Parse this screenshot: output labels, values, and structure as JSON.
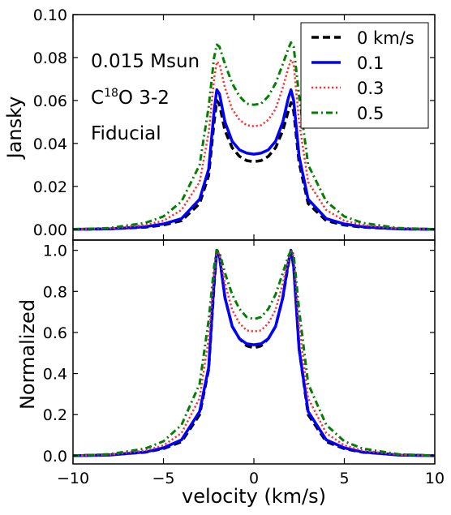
{
  "chart_data": [
    {
      "type": "line",
      "panel": "top",
      "xlabel": "",
      "ylabel": "Jansky",
      "xlim": [
        -10,
        10
      ],
      "ylim": [
        -0.005,
        0.1
      ],
      "xticks": [
        -10,
        -5,
        0,
        5,
        10
      ],
      "yticks": [
        {
          "value": 0.0,
          "label": "0.00"
        },
        {
          "value": 0.02,
          "label": "0.02"
        },
        {
          "value": 0.04,
          "label": "0.04"
        },
        {
          "value": 0.06,
          "label": "0.06"
        },
        {
          "value": 0.08,
          "label": "0.08"
        },
        {
          "value": 0.1,
          "label": "0.10"
        }
      ],
      "grid": false,
      "legend_position": "top-right",
      "annotations": {
        "mass": "0.015 Msun",
        "line_prefix": "C",
        "line_sup": "18",
        "line_suffix": "O 3-2",
        "model": "Fiducial"
      },
      "series": [
        {
          "name": "0 km/s",
          "color": "#000000",
          "dash": "dashed",
          "width": 3.5,
          "x": [
            -10,
            -8,
            -6,
            -5,
            -4,
            -3,
            -2.5,
            -2.2,
            -2.05,
            -1.9,
            -1.6,
            -1.2,
            -0.8,
            -0.4,
            0,
            0.4,
            0.8,
            1.2,
            1.6,
            1.9,
            2.05,
            2.2,
            2.5,
            3,
            4,
            5,
            6,
            8,
            10
          ],
          "y": [
            0.0,
            0.0002,
            0.001,
            0.002,
            0.004,
            0.012,
            0.025,
            0.05,
            0.06,
            0.058,
            0.046,
            0.038,
            0.034,
            0.032,
            0.0315,
            0.032,
            0.034,
            0.038,
            0.046,
            0.055,
            0.059,
            0.055,
            0.031,
            0.012,
            0.004,
            0.002,
            0.001,
            0.0002,
            0.0
          ]
        },
        {
          "name": "0.1",
          "color": "#0000ff",
          "dash": "solid",
          "width": 3.5,
          "x": [
            -10,
            -8,
            -6,
            -5,
            -4,
            -3,
            -2.5,
            -2.2,
            -2.05,
            -1.9,
            -1.6,
            -1.2,
            -0.8,
            -0.4,
            0,
            0.4,
            0.8,
            1.2,
            1.6,
            1.9,
            2.05,
            2.2,
            2.5,
            3,
            4,
            5,
            6,
            8,
            10
          ],
          "y": [
            0.0,
            0.0002,
            0.0012,
            0.0025,
            0.005,
            0.014,
            0.028,
            0.055,
            0.065,
            0.063,
            0.05,
            0.041,
            0.037,
            0.0355,
            0.035,
            0.0355,
            0.037,
            0.041,
            0.05,
            0.061,
            0.065,
            0.06,
            0.034,
            0.014,
            0.005,
            0.0025,
            0.0012,
            0.0002,
            0.0
          ]
        },
        {
          "name": "0.3",
          "color": "#ff3030",
          "dash": "dotted",
          "width": 2.5,
          "x": [
            -10,
            -8,
            -6,
            -5,
            -4,
            -3,
            -2.5,
            -2.2,
            -2.05,
            -1.9,
            -1.6,
            -1.2,
            -0.8,
            -0.4,
            0,
            0.4,
            0.8,
            1.2,
            1.6,
            1.9,
            2.05,
            2.2,
            2.5,
            3,
            4,
            5,
            6,
            8,
            10
          ],
          "y": [
            0.0,
            0.0004,
            0.002,
            0.004,
            0.009,
            0.022,
            0.045,
            0.07,
            0.078,
            0.077,
            0.066,
            0.056,
            0.051,
            0.0485,
            0.048,
            0.0485,
            0.051,
            0.056,
            0.066,
            0.075,
            0.079,
            0.077,
            0.05,
            0.022,
            0.009,
            0.004,
            0.002,
            0.0004,
            0.0
          ]
        },
        {
          "name": "0.5",
          "color": "#007f00",
          "dash": "dashdot",
          "width": 3,
          "x": [
            -10,
            -8,
            -6,
            -5,
            -4,
            -3,
            -2.5,
            -2.2,
            -2.05,
            -1.9,
            -1.6,
            -1.2,
            -0.8,
            -0.4,
            0,
            0.4,
            0.8,
            1.2,
            1.6,
            1.9,
            2.05,
            2.2,
            2.5,
            3,
            4,
            5,
            6,
            8,
            10
          ],
          "y": [
            0.0,
            0.0006,
            0.003,
            0.006,
            0.013,
            0.03,
            0.057,
            0.08,
            0.086,
            0.085,
            0.077,
            0.068,
            0.062,
            0.0585,
            0.058,
            0.0585,
            0.062,
            0.068,
            0.077,
            0.084,
            0.087,
            0.085,
            0.062,
            0.03,
            0.013,
            0.006,
            0.003,
            0.0006,
            0.0
          ]
        }
      ]
    },
    {
      "type": "line",
      "panel": "bottom",
      "xlabel": "velocity (km/s)",
      "ylabel": "Normalized",
      "xlim": [
        -10,
        10
      ],
      "ylim": [
        -0.04,
        1.05
      ],
      "xticks": [
        -10,
        -5,
        0,
        5,
        10
      ],
      "yticks": [
        {
          "value": 0.0,
          "label": "0.0"
        },
        {
          "value": 0.2,
          "label": "0.2"
        },
        {
          "value": 0.4,
          "label": "0.4"
        },
        {
          "value": 0.6,
          "label": "0.6"
        },
        {
          "value": 0.8,
          "label": "0.8"
        },
        {
          "value": 1.0,
          "label": "1.0"
        }
      ],
      "grid": false,
      "series": [
        {
          "name": "0 km/s",
          "color": "#000000",
          "dash": "dashed",
          "width": 3.5,
          "x": [
            -10,
            -8,
            -6,
            -5,
            -4,
            -3,
            -2.5,
            -2.2,
            -2.05,
            -1.9,
            -1.6,
            -1.2,
            -0.8,
            -0.4,
            0,
            0.4,
            0.8,
            1.2,
            1.6,
            1.9,
            2.05,
            2.2,
            2.5,
            3,
            4,
            5,
            6,
            8,
            10
          ],
          "y": [
            0.0,
            0.004,
            0.017,
            0.034,
            0.068,
            0.2,
            0.42,
            0.83,
            1.0,
            0.97,
            0.77,
            0.63,
            0.57,
            0.535,
            0.525,
            0.535,
            0.57,
            0.63,
            0.77,
            0.93,
            1.0,
            0.93,
            0.52,
            0.2,
            0.068,
            0.034,
            0.017,
            0.004,
            0.0
          ]
        },
        {
          "name": "0.1",
          "color": "#0000ff",
          "dash": "solid",
          "width": 3.5,
          "x": [
            -10,
            -8,
            -6,
            -5,
            -4,
            -3,
            -2.5,
            -2.2,
            -2.05,
            -1.9,
            -1.6,
            -1.2,
            -0.8,
            -0.4,
            0,
            0.4,
            0.8,
            1.2,
            1.6,
            1.9,
            2.05,
            2.2,
            2.5,
            3,
            4,
            5,
            6,
            8,
            10
          ],
          "y": [
            0.0,
            0.003,
            0.018,
            0.038,
            0.077,
            0.215,
            0.43,
            0.85,
            1.0,
            0.97,
            0.77,
            0.63,
            0.57,
            0.545,
            0.54,
            0.545,
            0.57,
            0.63,
            0.77,
            0.94,
            1.0,
            0.92,
            0.52,
            0.215,
            0.077,
            0.038,
            0.018,
            0.003,
            0.0
          ]
        },
        {
          "name": "0.3",
          "color": "#ff3030",
          "dash": "dotted",
          "width": 2.5,
          "x": [
            -10,
            -8,
            -6,
            -5,
            -4,
            -3,
            -2.5,
            -2.2,
            -2.05,
            -1.9,
            -1.6,
            -1.2,
            -0.8,
            -0.4,
            0,
            0.4,
            0.8,
            1.2,
            1.6,
            1.9,
            2.05,
            2.2,
            2.5,
            3,
            4,
            5,
            6,
            8,
            10
          ],
          "y": [
            0.0,
            0.005,
            0.025,
            0.05,
            0.11,
            0.28,
            0.57,
            0.89,
            1.0,
            0.98,
            0.84,
            0.71,
            0.645,
            0.61,
            0.605,
            0.61,
            0.645,
            0.71,
            0.84,
            0.95,
            1.0,
            0.97,
            0.63,
            0.28,
            0.11,
            0.05,
            0.025,
            0.005,
            0.0
          ]
        },
        {
          "name": "0.5",
          "color": "#007f00",
          "dash": "dashdot",
          "width": 3,
          "x": [
            -10,
            -8,
            -6,
            -5,
            -4,
            -3,
            -2.5,
            -2.2,
            -2.05,
            -1.9,
            -1.6,
            -1.2,
            -0.8,
            -0.4,
            0,
            0.4,
            0.8,
            1.2,
            1.6,
            1.9,
            2.05,
            2.2,
            2.5,
            3,
            4,
            5,
            6,
            8,
            10
          ],
          "y": [
            0.0,
            0.007,
            0.035,
            0.07,
            0.15,
            0.35,
            0.66,
            0.92,
            1.0,
            0.99,
            0.89,
            0.785,
            0.715,
            0.675,
            0.665,
            0.675,
            0.715,
            0.785,
            0.89,
            0.97,
            1.0,
            0.98,
            0.71,
            0.35,
            0.15,
            0.07,
            0.035,
            0.007,
            0.0
          ]
        }
      ]
    }
  ]
}
